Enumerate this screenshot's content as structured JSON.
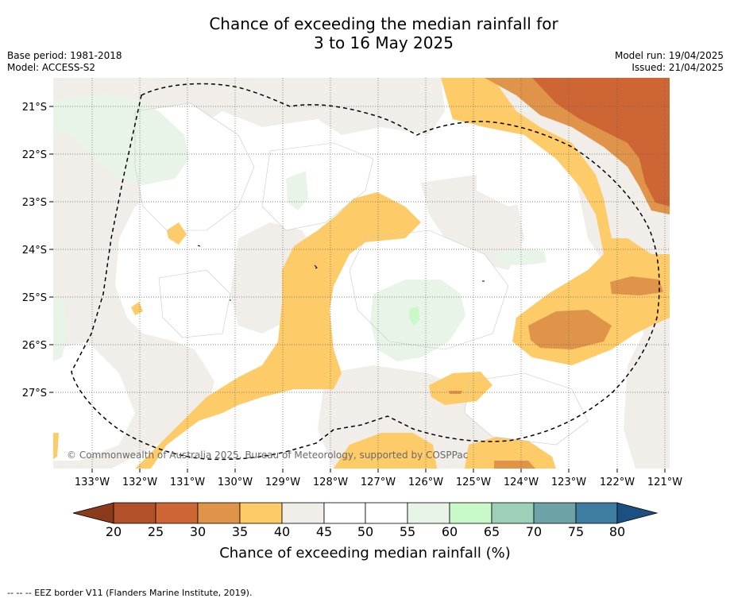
{
  "title_line1": "Chance of exceeding the median rainfall for",
  "title_line2": "3 to 16 May 2025",
  "meta_left": {
    "base_period": "Base period: 1981-2018",
    "model": "Model: ACCESS-S2"
  },
  "meta_right": {
    "model_run": "Model run: 19/04/2025",
    "issued": "Issued: 21/04/2025"
  },
  "credit": "© Commonwealth of Australia 2025, Bureau of Meteorology, supported by COSPPac",
  "lon_labels": [
    "133°W",
    "132°W",
    "131°W",
    "130°W",
    "129°W",
    "128°W",
    "127°W",
    "126°W",
    "125°W",
    "124°W",
    "123°W",
    "122°W",
    "121°W"
  ],
  "lat_labels": [
    "21°S",
    "22°S",
    "23°S",
    "24°S",
    "25°S",
    "26°S",
    "27°S"
  ],
  "colorbar": {
    "title": "Chance of exceeding median rainfall (%)",
    "ticks": [
      "20",
      "25",
      "30",
      "35",
      "40",
      "45",
      "50",
      "55",
      "60",
      "65",
      "70",
      "75",
      "80"
    ],
    "colors": {
      "below20": "#8c3a1c",
      "c20_25": "#b2502a",
      "c25_30": "#cd6634",
      "c30_35": "#e0944a",
      "c35_40": "#fdcb67",
      "c40_45": "#f1ede8",
      "c45_55": "#ffffff",
      "c55_60": "#e8f4e8",
      "c60_65": "#c9f8c9",
      "c65_70": "#9dd0b8",
      "c70_75": "#6ba3a6",
      "c75_80": "#3e7ca0",
      "above80": "#1c5083"
    }
  },
  "footer": "--  --  -- EEZ border V11 (Flanders Marine Institute, 2019)."
}
